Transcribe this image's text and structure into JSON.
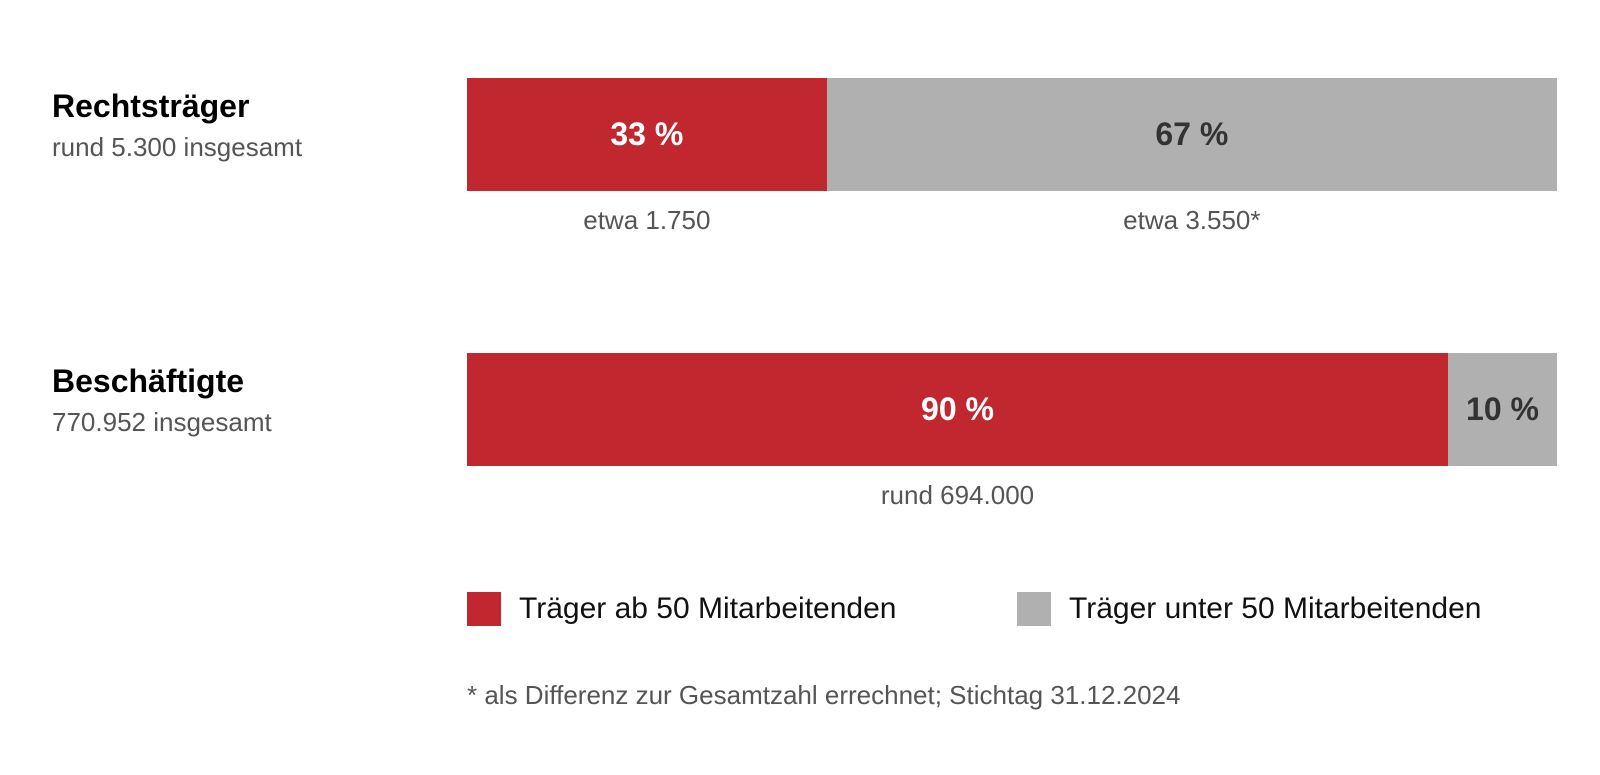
{
  "colors": {
    "primary": "#c1272f",
    "secondary": "#b0b0b0"
  },
  "chart_data": {
    "type": "bar",
    "orientation": "horizontal",
    "stacked": "percent",
    "categories": [
      "Rechtsträger",
      "Beschäftigte"
    ],
    "series": [
      {
        "name": "Träger ab 50 Mitarbeitenden",
        "values": [
          33,
          90
        ],
        "color": "#c1272f"
      },
      {
        "name": "Träger unter 50 Mitarbeitenden",
        "values": [
          67,
          10
        ],
        "color": "#b0b0b0"
      }
    ],
    "rows": [
      {
        "title": "Rechtsträger",
        "subtitle": "rund 5.300 insgesamt",
        "segments": [
          {
            "value": 33,
            "label": "33 %",
            "sublabel": "etwa 1.750"
          },
          {
            "value": 67,
            "label": "67 %",
            "sublabel": "etwa 3.550*"
          }
        ]
      },
      {
        "title": "Beschäftigte",
        "subtitle": "770.952 insgesamt",
        "segments": [
          {
            "value": 90,
            "label": "90 %",
            "sublabel": "rund 694.000"
          },
          {
            "value": 10,
            "label": "10 %",
            "sublabel": ""
          }
        ]
      }
    ],
    "legend": [
      "Träger ab 50 Mitarbeitenden",
      "Träger unter 50 Mitarbeitenden"
    ],
    "legend_position": "bottom",
    "xlim": [
      0,
      100
    ],
    "grid": false,
    "footnote": "* als Differenz zur Gesamtzahl errechnet; Stichtag 31.12.2024"
  }
}
